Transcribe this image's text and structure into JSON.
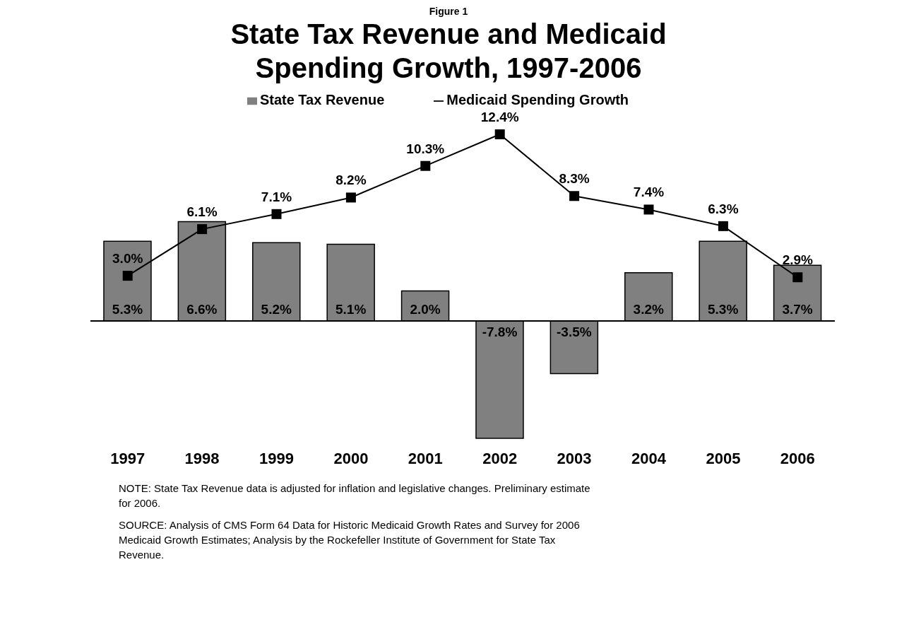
{
  "chart_data": {
    "type": "bar",
    "title": "State Tax Revenue and Medicaid Spending Growth, 1997-2006",
    "categories": [
      "1997",
      "1998",
      "1999",
      "2000",
      "2001",
      "2002",
      "2003",
      "2004",
      "2005",
      "2006"
    ],
    "series": [
      {
        "name": "State Tax Revenue",
        "color": "#808080",
        "values": [
          5.3,
          6.6,
          5.2,
          5.1,
          2.0,
          -7.8,
          -3.5,
          3.2,
          5.3,
          3.7
        ],
        "value_labels": [
          "5.3%",
          "6.6%",
          "5.2%",
          "5.1%",
          "2.0%",
          "-7.8%",
          "-3.5%",
          "3.2%",
          "5.3%",
          "3.7%"
        ]
      },
      {
        "name": "Medicaid Spending Growth",
        "type": "line",
        "color": "#000000",
        "values": [
          3.0,
          6.1,
          7.1,
          8.2,
          10.3,
          12.4,
          8.3,
          7.4,
          6.3,
          2.9
        ],
        "value_labels": [
          "3.0%",
          "6.1%",
          "7.1%",
          "8.2%",
          "10.3%",
          "12.4%",
          "8.3%",
          "7.4%",
          "6.3%",
          "2.9%"
        ]
      }
    ],
    "marker": "square",
    "legend": "top",
    "grid": false,
    "annotations": [
      "Figure 1",
      "NOTE: State Tax Revenue data is adjusted for inflation and legislative changes. Preliminary estimate for 2006.",
      "SOURCE: Analysis of CMS Form 64 Data for Historic Medicaid Growth Rates and Survey for 2006 Medicaid Growth Estimates; Analysis by the Rockefeller Institute of Government for State Tax Revenue."
    ]
  }
}
